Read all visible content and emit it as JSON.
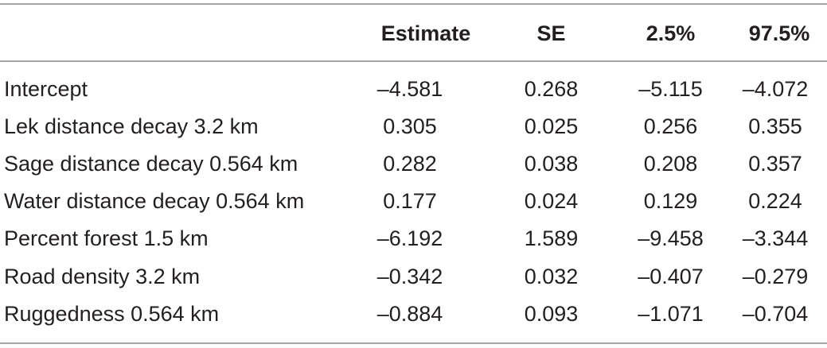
{
  "table": {
    "columns": [
      "",
      "Estimate",
      "SE",
      "2.5%",
      "97.5%"
    ],
    "rows": [
      {
        "label": "Intercept",
        "estimate": "–4.581",
        "se": "0.268",
        "lo": "–5.115",
        "hi": "–4.072"
      },
      {
        "label": "Lek distance decay 3.2 km",
        "estimate": "0.305",
        "se": "0.025",
        "lo": "0.256",
        "hi": "0.355"
      },
      {
        "label": "Sage distance decay 0.564 km",
        "estimate": "0.282",
        "se": "0.038",
        "lo": "0.208",
        "hi": "0.357"
      },
      {
        "label": "Water distance decay 0.564 km",
        "estimate": "0.177",
        "se": "0.024",
        "lo": "0.129",
        "hi": "0.224"
      },
      {
        "label": "Percent forest 1.5 km",
        "estimate": "–6.192",
        "se": "1.589",
        "lo": "–9.458",
        "hi": "–3.344"
      },
      {
        "label": "Road density 3.2 km",
        "estimate": "–0.342",
        "se": "0.032",
        "lo": "–0.407",
        "hi": "–0.279"
      },
      {
        "label": "Ruggedness 0.564 km",
        "estimate": "–0.884",
        "se": "0.093",
        "lo": "–1.071",
        "hi": "–0.704"
      }
    ]
  }
}
